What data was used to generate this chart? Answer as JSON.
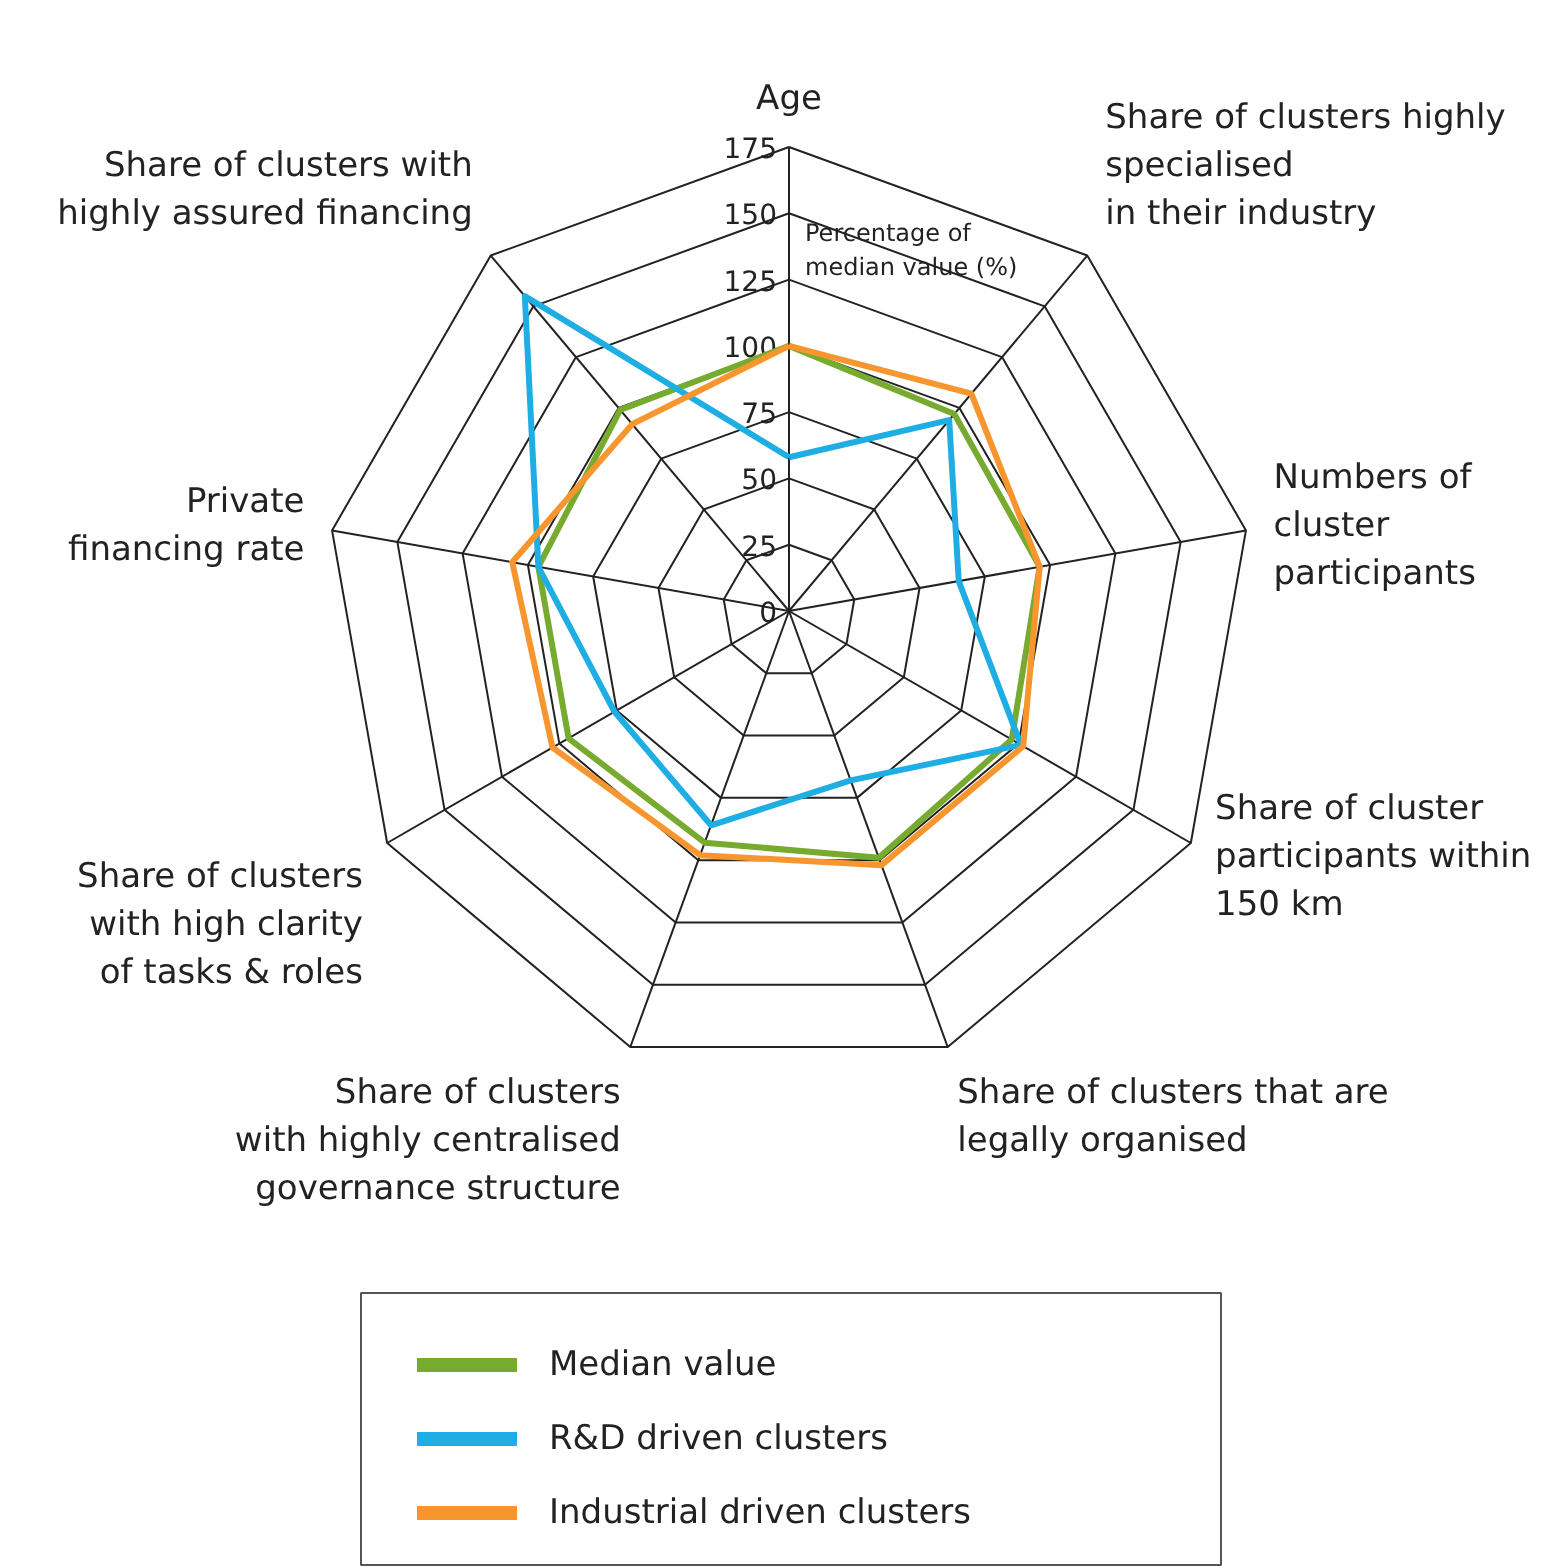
{
  "chart_data": {
    "type": "radar",
    "ylabel": "Percentage of\nmedian value (%)",
    "categories": [
      "Age",
      "Share of clusters highly\nspecialised\nin their industry",
      "Numbers of\ncluster\nparticipants",
      "Share of cluster\nparticipants within\n150 km",
      "Share of clusters that are\nlegally organised",
      "Share of clusters\nwith highly centralised\ngovernance structure",
      "Share of clusters\nwith high clarity\nof tasks & roles",
      "Private\nfinancing rate",
      "Share of clusters with\nhighly assured financing"
    ],
    "series": [
      {
        "name": "Median value",
        "color": "#77ab2f",
        "values": [
          100,
          97,
          96,
          97,
          99,
          93,
          96,
          96,
          99
        ]
      },
      {
        "name": "R&D driven clusters",
        "color": "#1eaee4",
        "values": [
          58,
          94,
          65,
          101,
          68,
          86,
          76,
          96,
          155
        ]
      },
      {
        "name": "Industrial driven clusters",
        "color": "#f7962f",
        "values": [
          100,
          107,
          96,
          102,
          102,
          98,
          103,
          106,
          92
        ]
      }
    ],
    "ylim": [
      0,
      175
    ],
    "yticks": [
      0,
      25,
      50,
      75,
      100,
      125,
      150,
      175
    ],
    "legend": "bottom",
    "line_style": "solid"
  }
}
